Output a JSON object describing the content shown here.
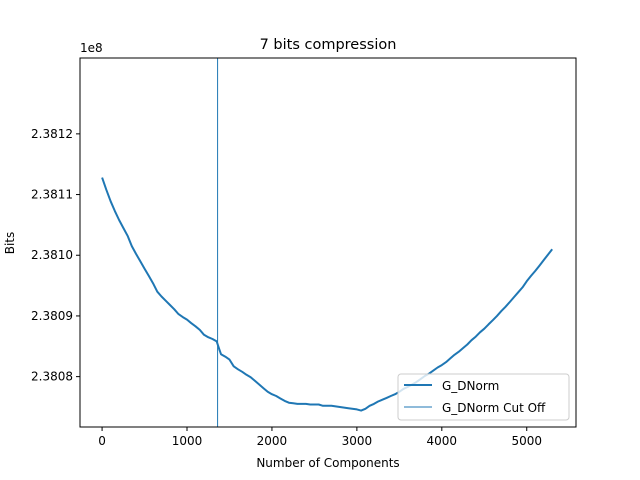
{
  "chart_data": {
    "type": "line",
    "title": "7 bits compression",
    "xlabel": "Number of Components",
    "ylabel": "Bits",
    "offset_label": "1e8",
    "xlim": [
      -260,
      5580
    ],
    "ylim": [
      238071700,
      238132500
    ],
    "y_scale": 100000000,
    "xticks": [
      0,
      1000,
      2000,
      3000,
      4000,
      5000
    ],
    "xtick_labels": [
      "0",
      "1000",
      "2000",
      "3000",
      "4000",
      "5000"
    ],
    "yticks": [
      238080000,
      238090000,
      238100000,
      238110000,
      238120000
    ],
    "ytick_labels": [
      "2.3808",
      "2.3809",
      "2.3810",
      "2.3811",
      "2.3812"
    ],
    "grid": false,
    "legend_position": "lower-right",
    "series": [
      {
        "name": "G_DNorm",
        "color": "#1f77b4",
        "x": [
          0,
          50,
          100,
          150,
          200,
          250,
          300,
          350,
          400,
          450,
          500,
          550,
          600,
          650,
          700,
          750,
          800,
          850,
          900,
          950,
          1000,
          1050,
          1100,
          1150,
          1200,
          1250,
          1300,
          1350,
          1380,
          1400,
          1450,
          1500,
          1550,
          1600,
          1650,
          1700,
          1750,
          1800,
          1850,
          1900,
          1950,
          2000,
          2050,
          2100,
          2150,
          2200,
          2250,
          2300,
          2350,
          2400,
          2450,
          2500,
          2550,
          2600,
          2700,
          2800,
          2900,
          3000,
          3050,
          3100,
          3150,
          3200,
          3250,
          3300,
          3350,
          3400,
          3450,
          3500,
          3550,
          3600,
          3650,
          3700,
          3750,
          3800,
          3850,
          3900,
          3950,
          4000,
          4050,
          4100,
          4150,
          4200,
          4250,
          4300,
          4350,
          4400,
          4450,
          4500,
          4550,
          4600,
          4650,
          4700,
          4750,
          4800,
          4850,
          4900,
          4950,
          5000,
          5050,
          5100,
          5150,
          5200,
          5250,
          5300
        ],
        "y": [
          238112800,
          238110800,
          238108900,
          238107300,
          238105800,
          238104500,
          238103200,
          238101500,
          238100200,
          238099000,
          238097800,
          238096600,
          238095400,
          238094000,
          238093200,
          238092500,
          238091800,
          238091100,
          238090300,
          238089800,
          238089400,
          238088800,
          238088300,
          238087700,
          238086900,
          238086500,
          238086200,
          238085800,
          238084500,
          238083700,
          238083300,
          238082800,
          238081700,
          238081200,
          238080800,
          238080300,
          238079900,
          238079300,
          238078700,
          238078100,
          238077500,
          238077100,
          238076800,
          238076400,
          238076000,
          238075700,
          238075600,
          238075500,
          238075500,
          238075500,
          238075400,
          238075400,
          238075400,
          238075200,
          238075200,
          238075000,
          238074800,
          238074600,
          238074400,
          238074700,
          238075200,
          238075500,
          238075900,
          238076200,
          238076500,
          238076800,
          238077100,
          238077500,
          238078000,
          238078300,
          238078700,
          238079100,
          238079600,
          238080100,
          238080500,
          238081000,
          238081500,
          238081900,
          238082400,
          238083000,
          238083600,
          238084100,
          238084700,
          238085300,
          238086000,
          238086600,
          238087300,
          238087900,
          238088600,
          238089300,
          238090000,
          238090800,
          238091500,
          238092300,
          238093100,
          238093900,
          238094700,
          238095700,
          238096600,
          238097400,
          238098300,
          238099200,
          238100100,
          238101000
        ]
      },
      {
        "name": "G_DNorm Cut Off",
        "color": "#1f77b4",
        "type": "vline",
        "x": 1360
      }
    ]
  }
}
